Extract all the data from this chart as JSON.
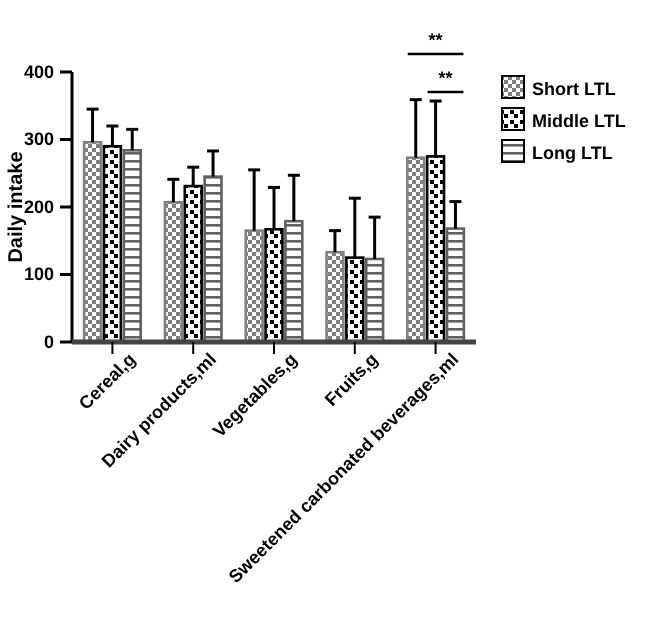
{
  "chart_data": {
    "type": "bar",
    "ylabel": "Daily intake",
    "categories": [
      "Cereal,g",
      "Dairy products,ml",
      "Vegetables,g",
      "Fruits,g",
      "Sweetened carbonated beverages,ml"
    ],
    "series": [
      {
        "name": "Short LTL",
        "color": "#808080",
        "values": [
          296,
          207,
          165,
          133,
          273
        ],
        "errors": [
          [
            296,
            345
          ],
          [
            207,
            241
          ],
          [
            165,
            255
          ],
          [
            133,
            165
          ],
          [
            273,
            359
          ]
        ]
      },
      {
        "name": "Middle LTL",
        "color": "#000000",
        "values": [
          290,
          231,
          167,
          125,
          275
        ],
        "errors": [
          [
            290,
            320
          ],
          [
            231,
            259
          ],
          [
            167,
            229
          ],
          [
            125,
            213
          ],
          [
            275,
            357
          ]
        ]
      },
      {
        "name": "Long LTL",
        "color": "#606060",
        "values": [
          284,
          245,
          179,
          123,
          168
        ],
        "errors": [
          [
            284,
            315
          ],
          [
            245,
            283
          ],
          [
            179,
            247
          ],
          [
            123,
            185
          ],
          [
            168,
            208
          ]
        ]
      }
    ],
    "ylim": [
      0,
      400
    ],
    "yticks": [
      0,
      100,
      200,
      300,
      400
    ],
    "legend": "top right",
    "grid": false,
    "annotations": [
      "**",
      "**"
    ]
  }
}
